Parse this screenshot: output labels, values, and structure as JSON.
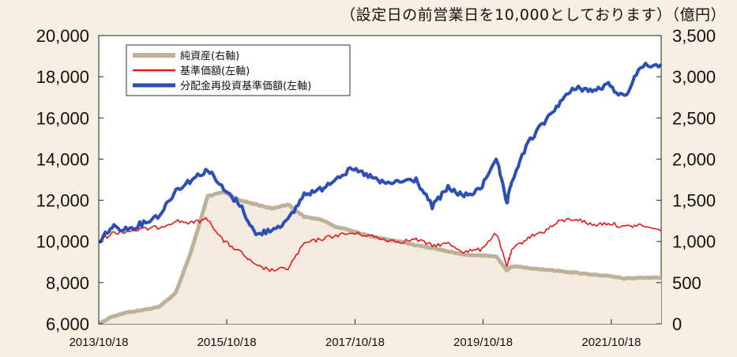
{
  "note": "（設定日の前営業日を10,000としております）（億円）",
  "chart_data": {
    "type": "line",
    "title": "",
    "x_ticks": [
      "2013/10/18",
      "2015/10/18",
      "2017/10/18",
      "2019/10/18",
      "2021/10/18"
    ],
    "xlim": [
      "2013/10/18",
      "2022/07/29"
    ],
    "y_left": {
      "ylim": [
        6000,
        20000
      ],
      "ticks": [
        "6,000",
        "8,000",
        "10,000",
        "12,000",
        "14,000",
        "16,000",
        "18,000",
        "20,000"
      ]
    },
    "y_right": {
      "ylim": [
        0,
        3500
      ],
      "ticks": [
        "0",
        "500",
        "1,000",
        "1,500",
        "2,000",
        "2,500",
        "3,000",
        "3,500"
      ]
    },
    "legend": {
      "placement": "top-left"
    },
    "x": [
      "2013/10/18",
      "2014/01",
      "2014/04",
      "2014/07",
      "2014/10",
      "2015/01",
      "2015/04",
      "2015/07",
      "2015/10",
      "2016/01",
      "2016/04",
      "2016/07",
      "2016/10",
      "2017/01",
      "2017/04",
      "2017/07",
      "2017/10",
      "2018/01",
      "2018/04",
      "2018/07",
      "2018/10",
      "2019/01",
      "2019/04",
      "2019/07",
      "2019/10",
      "2020/01",
      "2020/03",
      "2020/04",
      "2020/07",
      "2020/10",
      "2021/01",
      "2021/04",
      "2021/07",
      "2021/10",
      "2022/01",
      "2022/04",
      "2022/07/29"
    ],
    "series": [
      {
        "name": "純資産(右軸)",
        "axis": "right",
        "color": "#bfb199",
        "width": 5,
        "values": [
          0,
          90,
          140,
          170,
          210,
          380,
          900,
          1550,
          1600,
          1500,
          1450,
          1400,
          1450,
          1300,
          1270,
          1180,
          1130,
          1070,
          1030,
          1000,
          950,
          920,
          880,
          840,
          830,
          820,
          650,
          700,
          680,
          660,
          640,
          620,
          600,
          580,
          550,
          560,
          560
        ]
      },
      {
        "name": "基準価額(左軸)",
        "axis": "left",
        "color": "#e81818",
        "width": 1.6,
        "values": [
          10000,
          10400,
          10500,
          10600,
          10700,
          11000,
          10900,
          11100,
          10000,
          9500,
          8800,
          8600,
          8700,
          9900,
          10100,
          10300,
          10400,
          10300,
          10100,
          10000,
          10100,
          9800,
          9900,
          9500,
          9600,
          10400,
          8800,
          9600,
          10200,
          10500,
          11000,
          11100,
          10800,
          10900,
          10700,
          10800,
          10500
        ]
      },
      {
        "name": "分配金再投資基準価額(左軸)",
        "axis": "left",
        "color": "#2b4fb3",
        "width": 4,
        "values": [
          10000,
          10700,
          10600,
          10900,
          11300,
          12500,
          13000,
          13500,
          12500,
          11800,
          10300,
          10600,
          11000,
          12300,
          12500,
          13100,
          13500,
          13200,
          12800,
          12900,
          13000,
          11700,
          12600,
          12200,
          12500,
          14100,
          11800,
          13000,
          14800,
          15800,
          16800,
          17500,
          17300,
          17600,
          17000,
          18500,
          18600
        ]
      }
    ]
  }
}
